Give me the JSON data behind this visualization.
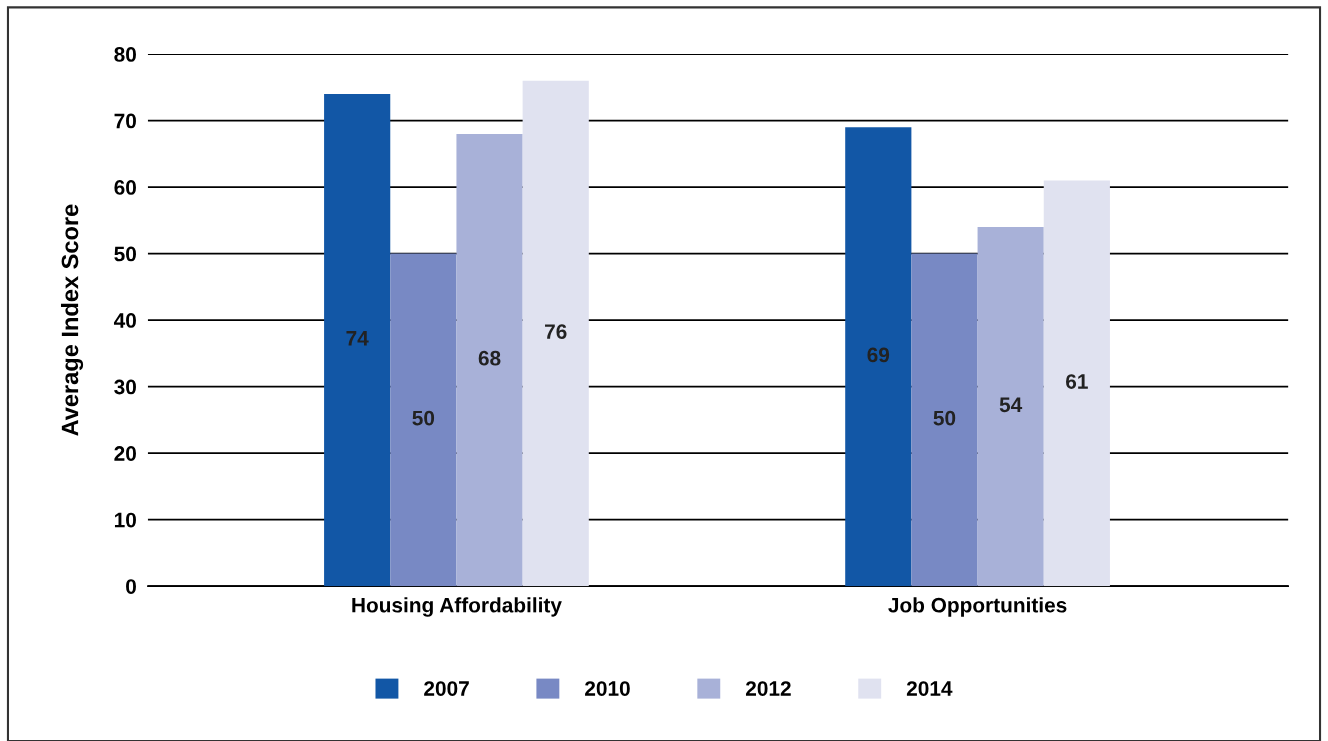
{
  "chart_data": {
    "type": "bar",
    "ylabel": "Average Index Score",
    "categories": [
      "Housing Affordability",
      "Job Opportunities"
    ],
    "series": [
      {
        "name": "2007",
        "color": "#1257a6",
        "values": [
          74,
          69
        ]
      },
      {
        "name": "2010",
        "color": "#7889c4",
        "values": [
          50,
          50
        ]
      },
      {
        "name": "2012",
        "color": "#a8b1d8",
        "values": [
          68,
          54
        ]
      },
      {
        "name": "2014",
        "color": "#e0e2f0",
        "values": [
          76,
          61
        ]
      }
    ],
    "ylim": [
      0,
      80
    ],
    "yticks": [
      0,
      10,
      20,
      30,
      40,
      50,
      60,
      70,
      80
    ],
    "grid": "y",
    "legend": "bottom",
    "data_labels": true
  }
}
